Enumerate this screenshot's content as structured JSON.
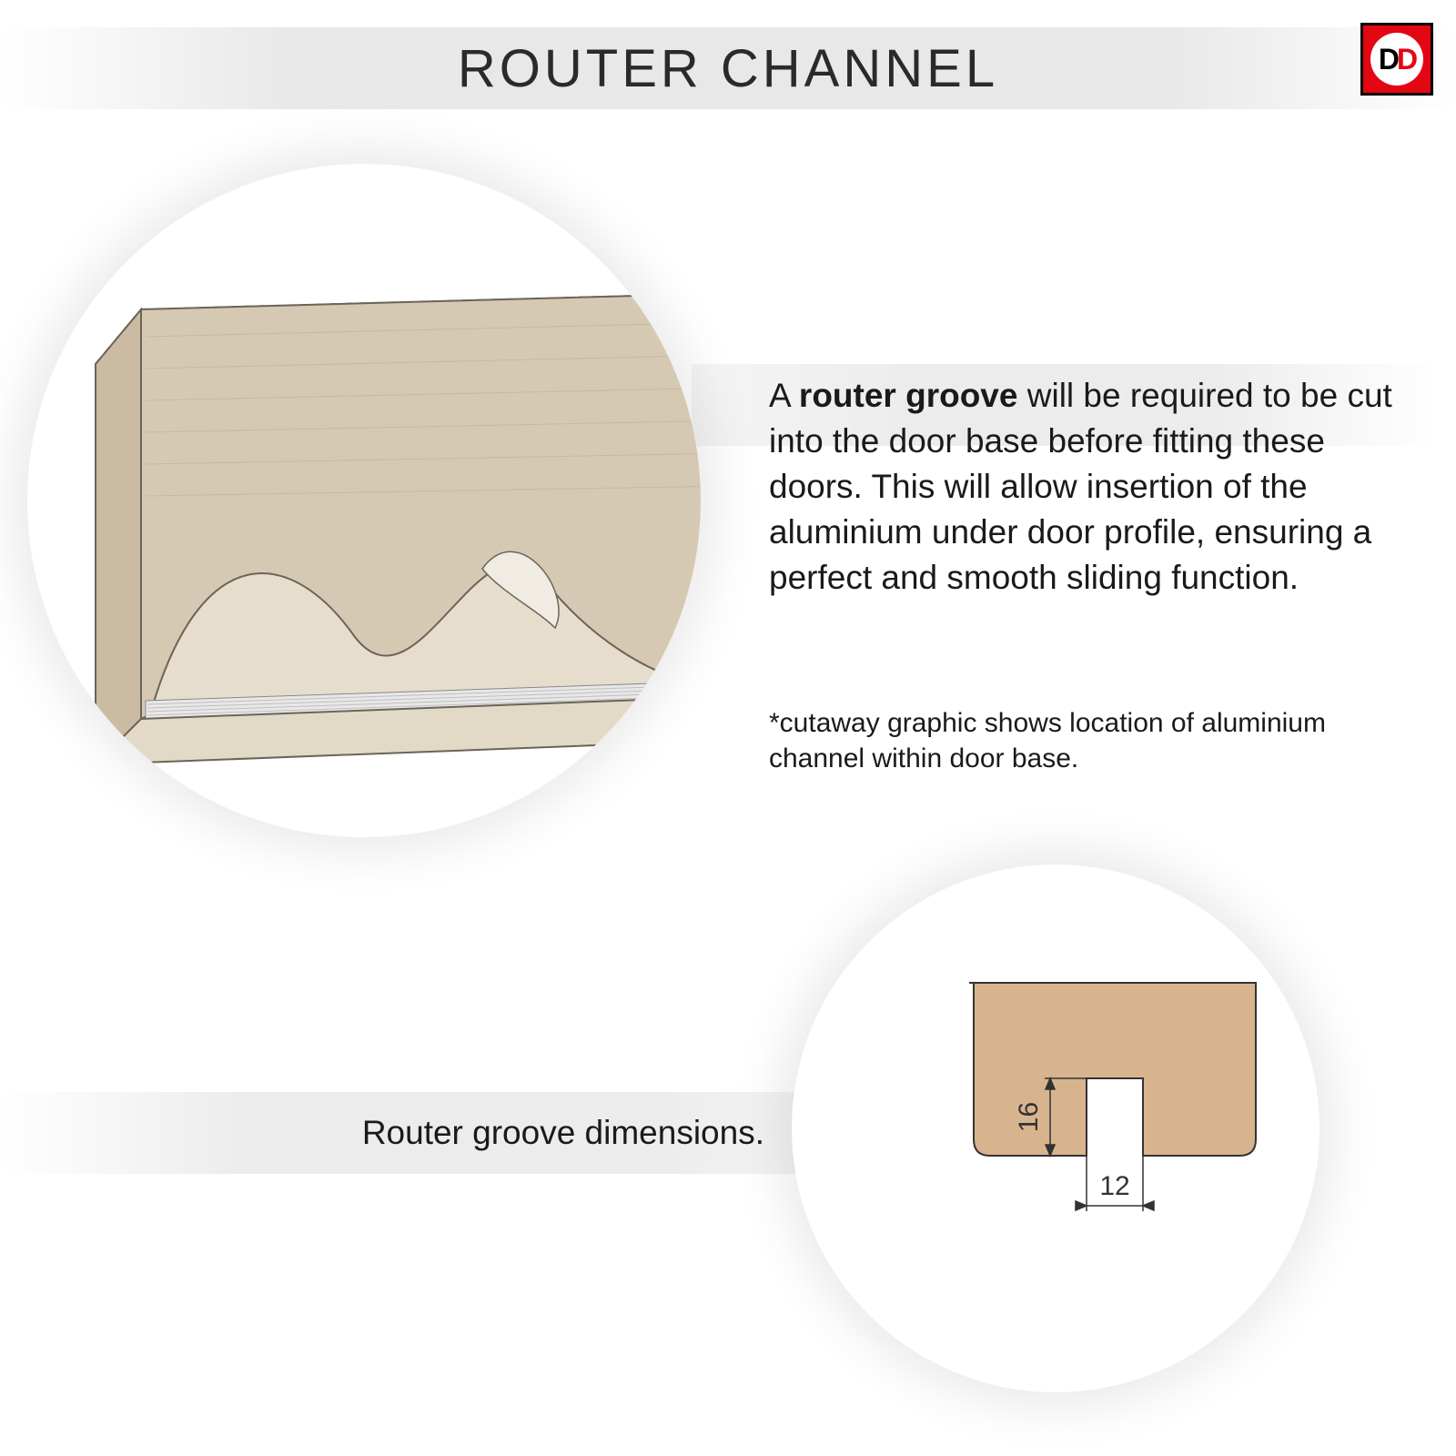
{
  "title": "ROUTER CHANNEL",
  "logo_text": "DD",
  "description": {
    "bold_lead": "router groove",
    "prefix": "A ",
    "body": " will be required to be cut into the door base before fitting these doors. This will allow insertion of the aluminium under door profile, ensuring a perfect and smooth sliding function."
  },
  "caption": "*cutaway graphic shows location of aluminium channel within door base.",
  "label_dimensions": "Router groove dimensions.",
  "cutaway": {
    "wood_fill": "#d6c9b4",
    "wood_side_fill": "#cbbba2",
    "wood_stroke": "#6b6458",
    "highlight": "#f0ece3",
    "channel_fill": "#e8e8e8",
    "channel_stroke": "#888888",
    "dash": "6,6"
  },
  "cross_section": {
    "fill": "#d8b48e",
    "stroke": "#333333",
    "dim_color": "#333333",
    "groove_depth_label": "16",
    "groove_width_label": "12",
    "groove_depth": 85,
    "groove_width": 62,
    "block_w": 310,
    "block_h": 190,
    "corner_r": 18,
    "dash": "8,8",
    "font_size": 30
  },
  "colors": {
    "title_text": "#2a2a2a",
    "body_text": "#1a1a1a",
    "bar_grad_mid": "#ececec",
    "logo_bg": "#e30613",
    "logo_border": "#000000"
  }
}
